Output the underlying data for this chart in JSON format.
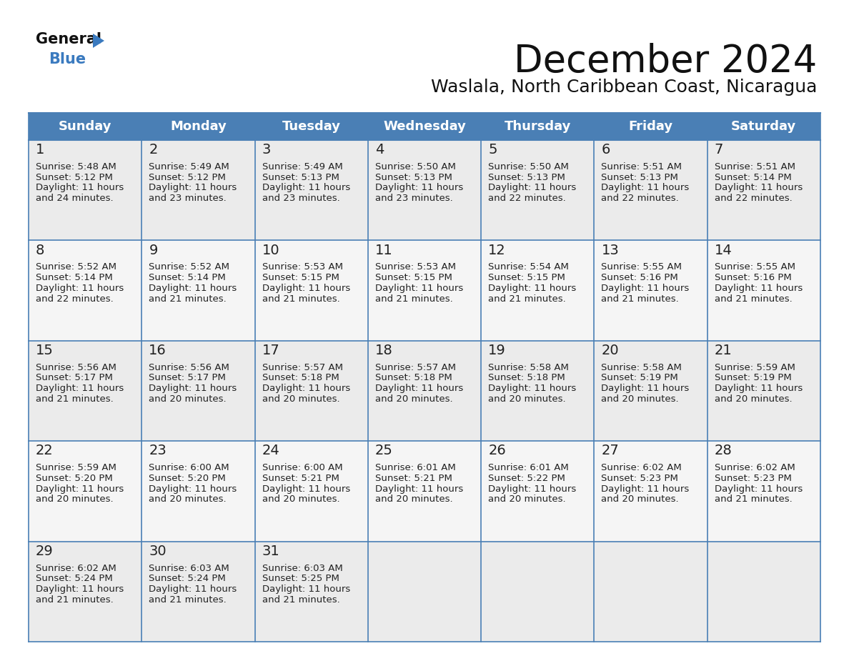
{
  "title": "December 2024",
  "subtitle": "Waslala, North Caribbean Coast, Nicaragua",
  "days_of_week": [
    "Sunday",
    "Monday",
    "Tuesday",
    "Wednesday",
    "Thursday",
    "Friday",
    "Saturday"
  ],
  "header_bg": "#4A7FB5",
  "header_text": "#FFFFFF",
  "cell_bg_week0": "#EBEBEB",
  "cell_bg_week1": "#F5F5F5",
  "cell_bg_week2": "#EBEBEB",
  "cell_bg_week3": "#F5F5F5",
  "cell_bg_week4": "#EBEBEB",
  "border_color": "#4A7FB5",
  "day_number_color": "#222222",
  "text_color": "#222222",
  "title_color": "#111111",
  "subtitle_color": "#111111",
  "logo_general_color": "#111111",
  "logo_blue_color": "#3a7abf",
  "days": [
    {
      "date": 1,
      "week": 0,
      "dow": 0,
      "sunrise": "5:48 AM",
      "sunset": "5:12 PM",
      "daylight_hours": 11,
      "daylight_minutes": 24
    },
    {
      "date": 2,
      "week": 0,
      "dow": 1,
      "sunrise": "5:49 AM",
      "sunset": "5:12 PM",
      "daylight_hours": 11,
      "daylight_minutes": 23
    },
    {
      "date": 3,
      "week": 0,
      "dow": 2,
      "sunrise": "5:49 AM",
      "sunset": "5:13 PM",
      "daylight_hours": 11,
      "daylight_minutes": 23
    },
    {
      "date": 4,
      "week": 0,
      "dow": 3,
      "sunrise": "5:50 AM",
      "sunset": "5:13 PM",
      "daylight_hours": 11,
      "daylight_minutes": 23
    },
    {
      "date": 5,
      "week": 0,
      "dow": 4,
      "sunrise": "5:50 AM",
      "sunset": "5:13 PM",
      "daylight_hours": 11,
      "daylight_minutes": 22
    },
    {
      "date": 6,
      "week": 0,
      "dow": 5,
      "sunrise": "5:51 AM",
      "sunset": "5:13 PM",
      "daylight_hours": 11,
      "daylight_minutes": 22
    },
    {
      "date": 7,
      "week": 0,
      "dow": 6,
      "sunrise": "5:51 AM",
      "sunset": "5:14 PM",
      "daylight_hours": 11,
      "daylight_minutes": 22
    },
    {
      "date": 8,
      "week": 1,
      "dow": 0,
      "sunrise": "5:52 AM",
      "sunset": "5:14 PM",
      "daylight_hours": 11,
      "daylight_minutes": 22
    },
    {
      "date": 9,
      "week": 1,
      "dow": 1,
      "sunrise": "5:52 AM",
      "sunset": "5:14 PM",
      "daylight_hours": 11,
      "daylight_minutes": 21
    },
    {
      "date": 10,
      "week": 1,
      "dow": 2,
      "sunrise": "5:53 AM",
      "sunset": "5:15 PM",
      "daylight_hours": 11,
      "daylight_minutes": 21
    },
    {
      "date": 11,
      "week": 1,
      "dow": 3,
      "sunrise": "5:53 AM",
      "sunset": "5:15 PM",
      "daylight_hours": 11,
      "daylight_minutes": 21
    },
    {
      "date": 12,
      "week": 1,
      "dow": 4,
      "sunrise": "5:54 AM",
      "sunset": "5:15 PM",
      "daylight_hours": 11,
      "daylight_minutes": 21
    },
    {
      "date": 13,
      "week": 1,
      "dow": 5,
      "sunrise": "5:55 AM",
      "sunset": "5:16 PM",
      "daylight_hours": 11,
      "daylight_minutes": 21
    },
    {
      "date": 14,
      "week": 1,
      "dow": 6,
      "sunrise": "5:55 AM",
      "sunset": "5:16 PM",
      "daylight_hours": 11,
      "daylight_minutes": 21
    },
    {
      "date": 15,
      "week": 2,
      "dow": 0,
      "sunrise": "5:56 AM",
      "sunset": "5:17 PM",
      "daylight_hours": 11,
      "daylight_minutes": 21
    },
    {
      "date": 16,
      "week": 2,
      "dow": 1,
      "sunrise": "5:56 AM",
      "sunset": "5:17 PM",
      "daylight_hours": 11,
      "daylight_minutes": 20
    },
    {
      "date": 17,
      "week": 2,
      "dow": 2,
      "sunrise": "5:57 AM",
      "sunset": "5:18 PM",
      "daylight_hours": 11,
      "daylight_minutes": 20
    },
    {
      "date": 18,
      "week": 2,
      "dow": 3,
      "sunrise": "5:57 AM",
      "sunset": "5:18 PM",
      "daylight_hours": 11,
      "daylight_minutes": 20
    },
    {
      "date": 19,
      "week": 2,
      "dow": 4,
      "sunrise": "5:58 AM",
      "sunset": "5:18 PM",
      "daylight_hours": 11,
      "daylight_minutes": 20
    },
    {
      "date": 20,
      "week": 2,
      "dow": 5,
      "sunrise": "5:58 AM",
      "sunset": "5:19 PM",
      "daylight_hours": 11,
      "daylight_minutes": 20
    },
    {
      "date": 21,
      "week": 2,
      "dow": 6,
      "sunrise": "5:59 AM",
      "sunset": "5:19 PM",
      "daylight_hours": 11,
      "daylight_minutes": 20
    },
    {
      "date": 22,
      "week": 3,
      "dow": 0,
      "sunrise": "5:59 AM",
      "sunset": "5:20 PM",
      "daylight_hours": 11,
      "daylight_minutes": 20
    },
    {
      "date": 23,
      "week": 3,
      "dow": 1,
      "sunrise": "6:00 AM",
      "sunset": "5:20 PM",
      "daylight_hours": 11,
      "daylight_minutes": 20
    },
    {
      "date": 24,
      "week": 3,
      "dow": 2,
      "sunrise": "6:00 AM",
      "sunset": "5:21 PM",
      "daylight_hours": 11,
      "daylight_minutes": 20
    },
    {
      "date": 25,
      "week": 3,
      "dow": 3,
      "sunrise": "6:01 AM",
      "sunset": "5:21 PM",
      "daylight_hours": 11,
      "daylight_minutes": 20
    },
    {
      "date": 26,
      "week": 3,
      "dow": 4,
      "sunrise": "6:01 AM",
      "sunset": "5:22 PM",
      "daylight_hours": 11,
      "daylight_minutes": 20
    },
    {
      "date": 27,
      "week": 3,
      "dow": 5,
      "sunrise": "6:02 AM",
      "sunset": "5:23 PM",
      "daylight_hours": 11,
      "daylight_minutes": 20
    },
    {
      "date": 28,
      "week": 3,
      "dow": 6,
      "sunrise": "6:02 AM",
      "sunset": "5:23 PM",
      "daylight_hours": 11,
      "daylight_minutes": 21
    },
    {
      "date": 29,
      "week": 4,
      "dow": 0,
      "sunrise": "6:02 AM",
      "sunset": "5:24 PM",
      "daylight_hours": 11,
      "daylight_minutes": 21
    },
    {
      "date": 30,
      "week": 4,
      "dow": 1,
      "sunrise": "6:03 AM",
      "sunset": "5:24 PM",
      "daylight_hours": 11,
      "daylight_minutes": 21
    },
    {
      "date": 31,
      "week": 4,
      "dow": 2,
      "sunrise": "6:03 AM",
      "sunset": "5:25 PM",
      "daylight_hours": 11,
      "daylight_minutes": 21
    }
  ]
}
